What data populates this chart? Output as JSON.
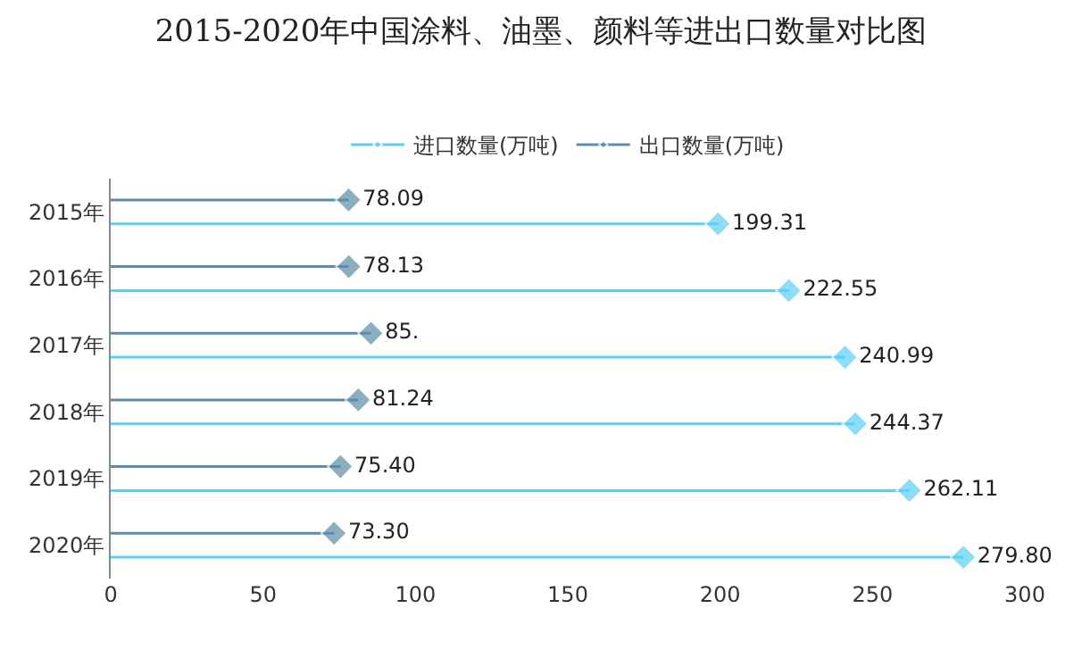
{
  "chart_data": {
    "type": "lollipop",
    "orientation": "horizontal",
    "title": "2015-2020年中国涂料、油墨、颜料等进出口数量对比图",
    "categories": [
      "2015年",
      "2016年",
      "2017年",
      "2018年",
      "2019年",
      "2020年"
    ],
    "series": [
      {
        "name": "进口数量(万吨)",
        "color": "#5bd0f6",
        "values": [
          199.31,
          222.55,
          240.99,
          244.37,
          262.11,
          279.8
        ],
        "value_labels": [
          "199.31",
          "222.55",
          "240.99",
          "244.37",
          "262.11",
          "279.80"
        ]
      },
      {
        "name": "出口数量(万吨)",
        "color": "#5b8ea8",
        "values": [
          78.09,
          78.13,
          85.4,
          81.24,
          75.4,
          73.3
        ],
        "value_labels": [
          "78.09",
          "78.13",
          "85.",
          "81.24",
          "75.40",
          "73.30"
        ]
      }
    ],
    "xlim": [
      0,
      300
    ],
    "xticks": [
      0,
      50,
      100,
      150,
      200,
      250,
      300
    ],
    "legend": "top",
    "marker": "diamond"
  }
}
